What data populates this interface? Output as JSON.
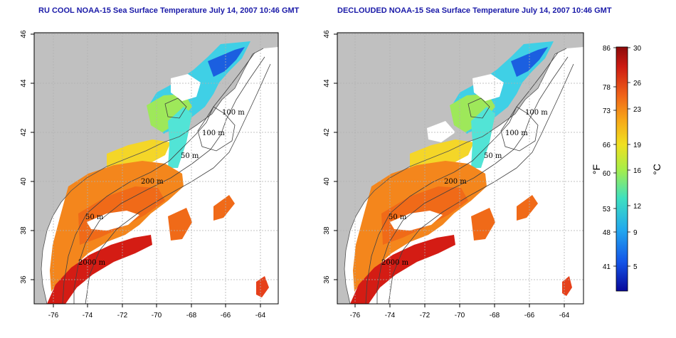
{
  "panels": [
    {
      "title": "RU COOL NOAA-15 Sea Surface Temperature July 14, 2007 10:46 GMT"
    },
    {
      "title": "DECLOUDED NOAA-15 Sea Surface Temperature July 14, 2007 10:46 GMT"
    }
  ],
  "axes": {
    "x_ticks": [
      "-76",
      "-74",
      "-72",
      "-70",
      "-68",
      "-66",
      "-64"
    ],
    "y_ticks": [
      "46",
      "44",
      "42",
      "40",
      "38",
      "36"
    ]
  },
  "contour_labels": [
    "100 m",
    "100 m",
    "50 m",
    "200 m",
    "50 m",
    "2000 m"
  ],
  "colorbar": {
    "fahrenheit_ticks": [
      "86",
      "78",
      "73",
      "66",
      "60",
      "53",
      "48",
      "41"
    ],
    "celsius_ticks": [
      "30",
      "26",
      "23",
      "19",
      "16",
      "12",
      "9",
      "5"
    ],
    "fahrenheit_unit": "°F",
    "celsius_unit": "°C",
    "colors": [
      "#08089a",
      "#1455e8",
      "#22a8ee",
      "#3ee0c0",
      "#a8ee48",
      "#f0e020",
      "#f7a818",
      "#f06418",
      "#cc1a12",
      "#8c0a0a"
    ]
  },
  "colors": {
    "land": "#c0c0c0",
    "cloud": "#ffffff",
    "title": "#1a1aa8",
    "grid": "#b0b0b0"
  }
}
